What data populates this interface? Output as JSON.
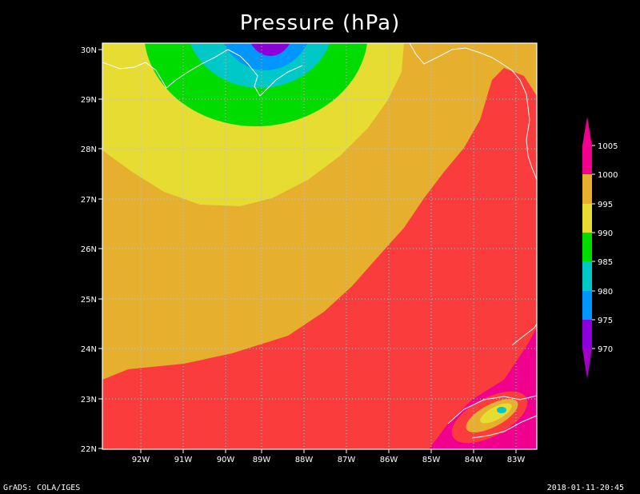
{
  "title": "Pressure (hPa)",
  "map": {
    "lon_ticks": [
      "92W",
      "91W",
      "90W",
      "89W",
      "88W",
      "87W",
      "86W",
      "85W",
      "84W",
      "83W"
    ],
    "lat_ticks": [
      "30N",
      "29N",
      "28N",
      "27N",
      "26N",
      "25N",
      "24N",
      "23N",
      "22N"
    ],
    "lon_range": [
      "92.9W",
      "82.6W"
    ],
    "lat_range": [
      "22N",
      "30N"
    ],
    "grid": "dotted"
  },
  "colorbar": {
    "levels": [
      "1005",
      "1000",
      "995",
      "990",
      "985",
      "980",
      "975",
      "970"
    ],
    "colors": [
      "#f0008c",
      "#fa3c3c",
      "#e6af2d",
      "#e6dc32",
      "#00dc00",
      "#00c8c8",
      "#0096ff",
      "#8c00dc",
      "#a000c8"
    ]
  },
  "footer": {
    "left": "GrADS: COLA/IGES",
    "right": "2018-01-11-20:45"
  }
}
